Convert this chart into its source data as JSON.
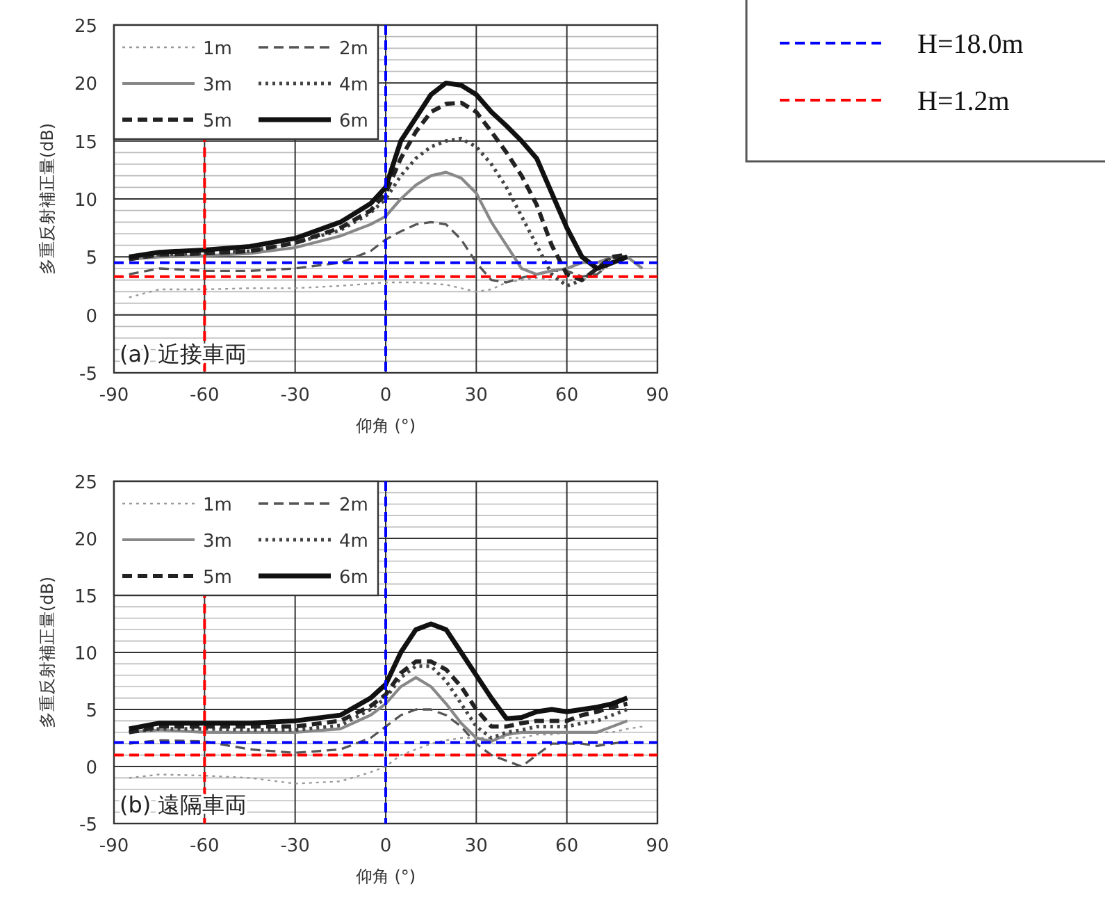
{
  "chart_data": [
    {
      "type": "line",
      "xlabel": "仰角 (°)",
      "ylabel": "多重反射補正量(dB)",
      "annotations": [
        "(a) 近接車両"
      ],
      "xlim": [
        -90,
        90
      ],
      "ylim": [
        -5,
        25
      ],
      "xticks": [
        -90,
        -60,
        -30,
        0,
        30,
        60,
        90
      ],
      "yticks": [
        -5,
        0,
        5,
        10,
        15,
        20,
        25
      ],
      "grid": true,
      "legend": "top left",
      "x": [
        -85,
        -75,
        -60,
        -45,
        -30,
        -15,
        -5,
        0,
        5,
        10,
        15,
        20,
        25,
        30,
        35,
        40,
        45,
        50,
        55,
        60,
        65,
        70,
        75,
        80,
        85
      ],
      "series": [
        {
          "name": "1m",
          "color": "#999999",
          "line_style": "dotted",
          "values": [
            1.5,
            2.2,
            2.2,
            2.3,
            2.3,
            2.5,
            2.7,
            2.8,
            2.8,
            2.8,
            2.7,
            2.6,
            2.3,
            2.0,
            2.2,
            2.8,
            3.0,
            3.2,
            3.0,
            3.0,
            3.0,
            3.5,
            4.5,
            5.0,
            null
          ]
        },
        {
          "name": "2m",
          "color": "#555555",
          "line_style": "dashed",
          "values": [
            3.5,
            4.0,
            3.8,
            3.8,
            4.0,
            4.5,
            5.5,
            6.5,
            7.2,
            7.8,
            8.0,
            7.8,
            6.5,
            4.5,
            3.0,
            2.8,
            3.2,
            3.5,
            3.8,
            3.8,
            3.3,
            3.5,
            4.5,
            5.0,
            null
          ]
        },
        {
          "name": "3m",
          "color": "#888888",
          "line_style": "solid",
          "values": [
            4.8,
            5.0,
            5.1,
            5.3,
            5.8,
            6.8,
            7.8,
            8.5,
            10.0,
            11.2,
            12.0,
            12.3,
            11.8,
            10.5,
            8.0,
            6.0,
            4.0,
            3.5,
            3.8,
            4.0,
            4.5,
            4.5,
            5.0,
            5.0,
            4.0
          ]
        },
        {
          "name": "4m",
          "color": "#444444",
          "line_style": "dotted",
          "values": [
            4.8,
            5.2,
            5.3,
            5.5,
            6.2,
            7.3,
            8.8,
            10.0,
            12.0,
            13.5,
            14.5,
            15.0,
            15.2,
            14.5,
            13.0,
            11.0,
            8.5,
            6.0,
            3.5,
            2.5,
            3.0,
            4.0,
            5.0,
            5.0,
            null
          ]
        },
        {
          "name": "5m",
          "color": "#222222",
          "line_style": "dashed",
          "values": [
            4.8,
            5.2,
            5.3,
            5.5,
            6.2,
            7.5,
            9.0,
            10.5,
            13.5,
            15.8,
            17.5,
            18.2,
            18.3,
            17.5,
            15.8,
            14.0,
            12.0,
            9.5,
            6.0,
            3.5,
            3.0,
            4.0,
            5.0,
            5.2,
            null
          ]
        },
        {
          "name": "6m",
          "color": "#111111",
          "line_style": "solid",
          "values": [
            5.0,
            5.4,
            5.6,
            5.9,
            6.6,
            8.0,
            9.6,
            11.0,
            15.0,
            17.0,
            19.0,
            20.0,
            19.8,
            19.0,
            17.5,
            16.3,
            15.0,
            13.5,
            10.5,
            7.5,
            5.0,
            4.0,
            4.5,
            5.0,
            null
          ]
        }
      ],
      "ref_lines": [
        {
          "axis": "x",
          "value": 0,
          "color": "#0000ff",
          "line_style": "dashed"
        },
        {
          "axis": "y",
          "value": 4.5,
          "color": "#0000ff",
          "line_style": "dashed"
        },
        {
          "axis": "x",
          "value": -60,
          "color": "#ff0000",
          "line_style": "dashed"
        },
        {
          "axis": "y",
          "value": 3.3,
          "color": "#ff0000",
          "line_style": "dashed"
        }
      ]
    },
    {
      "type": "line",
      "xlabel": "仰角 (°)",
      "ylabel": "多重反射補正量(dB)",
      "annotations": [
        "(b) 遠隔車両"
      ],
      "xlim": [
        -90,
        90
      ],
      "ylim": [
        -5,
        25
      ],
      "xticks": [
        -90,
        -60,
        -30,
        0,
        30,
        60,
        90
      ],
      "yticks": [
        -5,
        0,
        5,
        10,
        15,
        20,
        25
      ],
      "grid": true,
      "legend": "top left",
      "x": [
        -85,
        -75,
        -60,
        -45,
        -30,
        -15,
        -5,
        0,
        5,
        10,
        15,
        20,
        25,
        30,
        35,
        40,
        45,
        50,
        55,
        60,
        65,
        70,
        75,
        80,
        85
      ],
      "series": [
        {
          "name": "1m",
          "color": "#999999",
          "line_style": "dotted",
          "values": [
            -1.0,
            -0.7,
            -0.8,
            -1.0,
            -1.5,
            -1.3,
            -0.5,
            0.0,
            1.0,
            1.5,
            2.0,
            2.3,
            2.5,
            2.5,
            2.5,
            2.5,
            2.5,
            2.8,
            2.8,
            3.0,
            3.0,
            3.0,
            3.0,
            3.3,
            3.5
          ]
        },
        {
          "name": "2m",
          "color": "#555555",
          "line_style": "dashed",
          "values": [
            2.0,
            2.3,
            2.2,
            1.5,
            1.2,
            1.5,
            2.5,
            3.5,
            4.5,
            5.0,
            5.0,
            4.5,
            3.5,
            2.0,
            1.0,
            0.5,
            0.0,
            1.0,
            2.0,
            2.0,
            2.0,
            1.8,
            2.0,
            2.2,
            null
          ]
        },
        {
          "name": "3m",
          "color": "#888888",
          "line_style": "solid",
          "values": [
            3.0,
            3.2,
            3.0,
            3.0,
            3.0,
            3.3,
            4.5,
            5.5,
            7.0,
            7.8,
            7.0,
            5.5,
            3.8,
            2.5,
            2.2,
            2.8,
            3.0,
            3.0,
            3.0,
            3.0,
            3.0,
            3.0,
            3.5,
            4.0,
            null
          ]
        },
        {
          "name": "4m",
          "color": "#444444",
          "line_style": "dotted",
          "values": [
            3.0,
            3.3,
            3.3,
            3.2,
            3.2,
            3.6,
            5.0,
            6.0,
            7.8,
            8.8,
            8.8,
            7.5,
            5.5,
            3.5,
            2.5,
            3.0,
            3.2,
            3.5,
            3.5,
            3.5,
            3.8,
            4.0,
            4.5,
            5.0,
            null
          ]
        },
        {
          "name": "5m",
          "color": "#222222",
          "line_style": "dashed",
          "values": [
            3.0,
            3.5,
            3.5,
            3.5,
            3.5,
            4.0,
            5.3,
            6.3,
            8.2,
            9.2,
            9.2,
            8.5,
            7.0,
            5.0,
            3.5,
            3.5,
            3.8,
            4.0,
            4.0,
            4.0,
            4.5,
            4.8,
            5.2,
            5.5,
            null
          ]
        },
        {
          "name": "6m",
          "color": "#111111",
          "line_style": "solid",
          "values": [
            3.3,
            3.8,
            3.8,
            3.8,
            4.0,
            4.5,
            6.0,
            7.2,
            10.0,
            12.0,
            12.5,
            12.0,
            10.0,
            8.0,
            6.0,
            4.2,
            4.3,
            4.8,
            5.0,
            4.8,
            5.0,
            5.2,
            5.5,
            6.0,
            null
          ]
        }
      ],
      "ref_lines": [
        {
          "axis": "x",
          "value": 0,
          "color": "#0000ff",
          "line_style": "dashed"
        },
        {
          "axis": "y",
          "value": 2.1,
          "color": "#0000ff",
          "line_style": "dashed"
        },
        {
          "axis": "x",
          "value": -60,
          "color": "#ff0000",
          "line_style": "dashed"
        },
        {
          "axis": "y",
          "value": 1.0,
          "color": "#ff0000",
          "line_style": "dashed"
        }
      ]
    },
    {
      "type": "other",
      "annotations": [
        "H=18.0m",
        "H=1.2m"
      ]
    }
  ]
}
